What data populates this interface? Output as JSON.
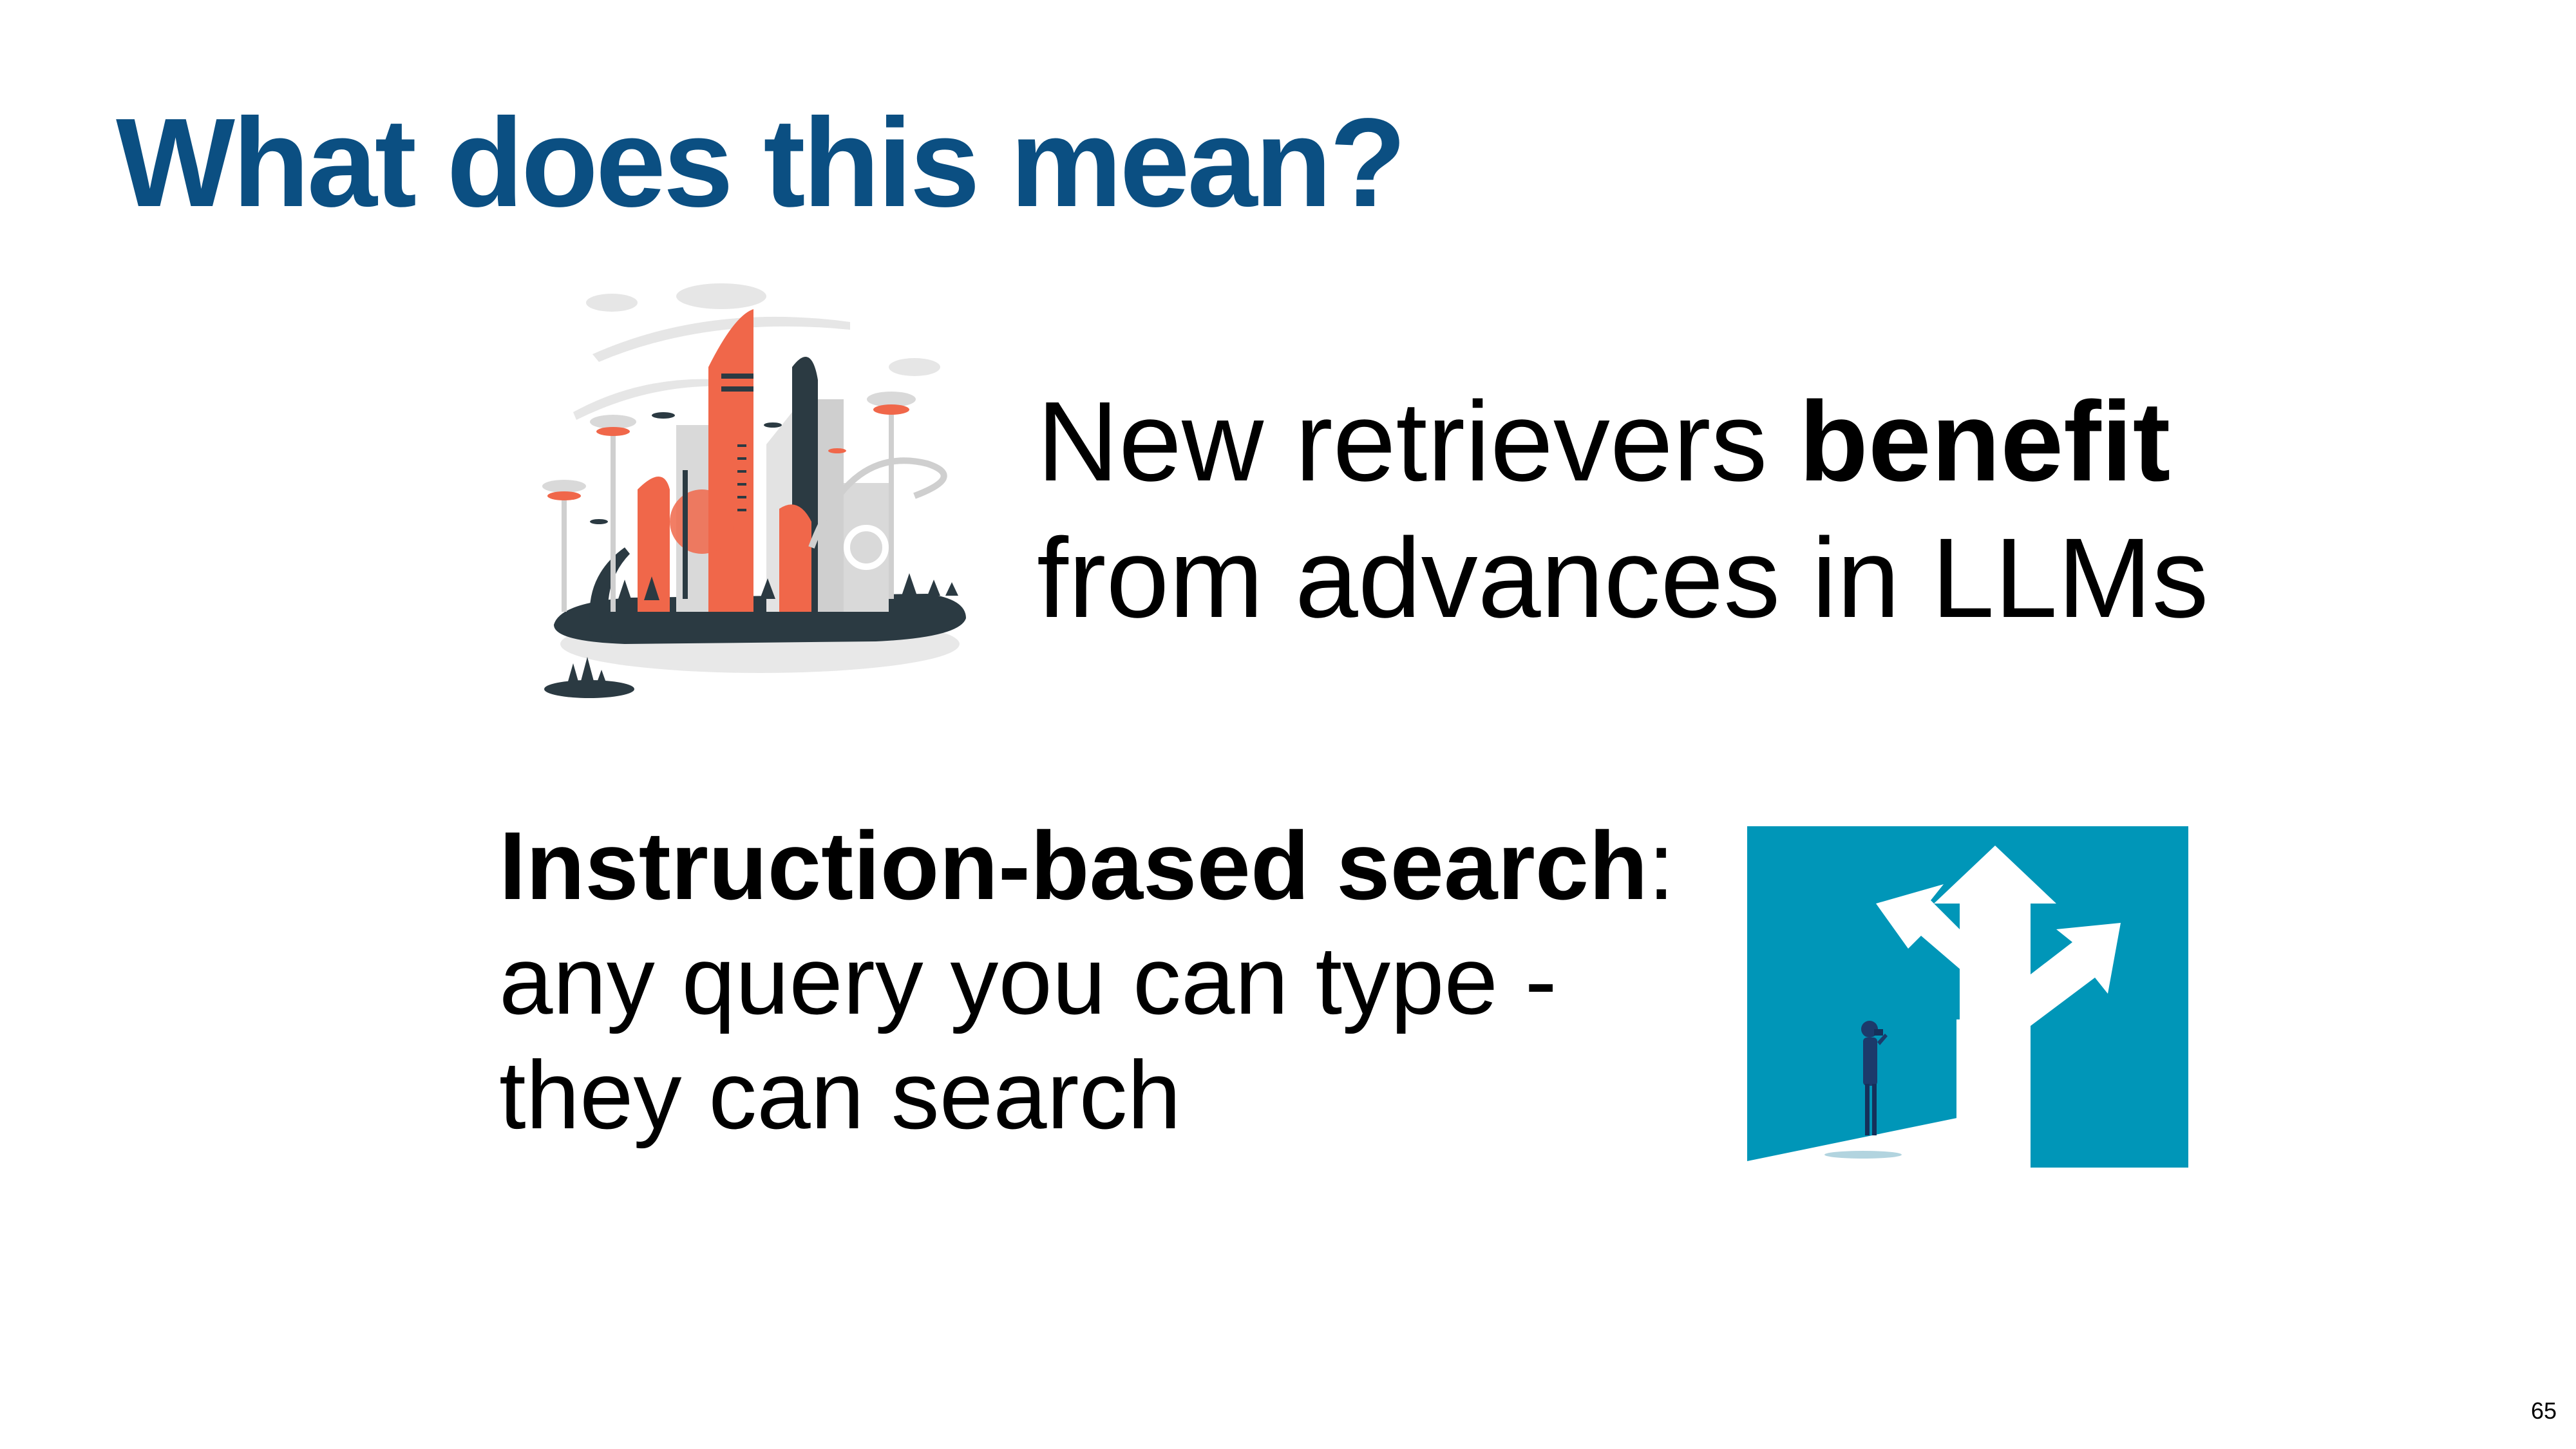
{
  "slide": {
    "title": "What does this mean?",
    "point1": {
      "line1_pre": "New retrievers ",
      "line1_bold": "benefit",
      "line2": "from advances in LLMs"
    },
    "point2": {
      "heading_bold": "Instruction-based search",
      "heading_colon": ":",
      "line2": "any query you can type -",
      "line3": "they can search"
    },
    "page_number": "65"
  },
  "colors": {
    "title": "#0b4f82",
    "accent_orange": "#f0674a",
    "dark": "#2b3a42",
    "teal_panel": "#0096b8"
  },
  "illustrations": {
    "top": "futuristic-city-illustration",
    "bottom": "crossroads-arrows-illustration"
  }
}
